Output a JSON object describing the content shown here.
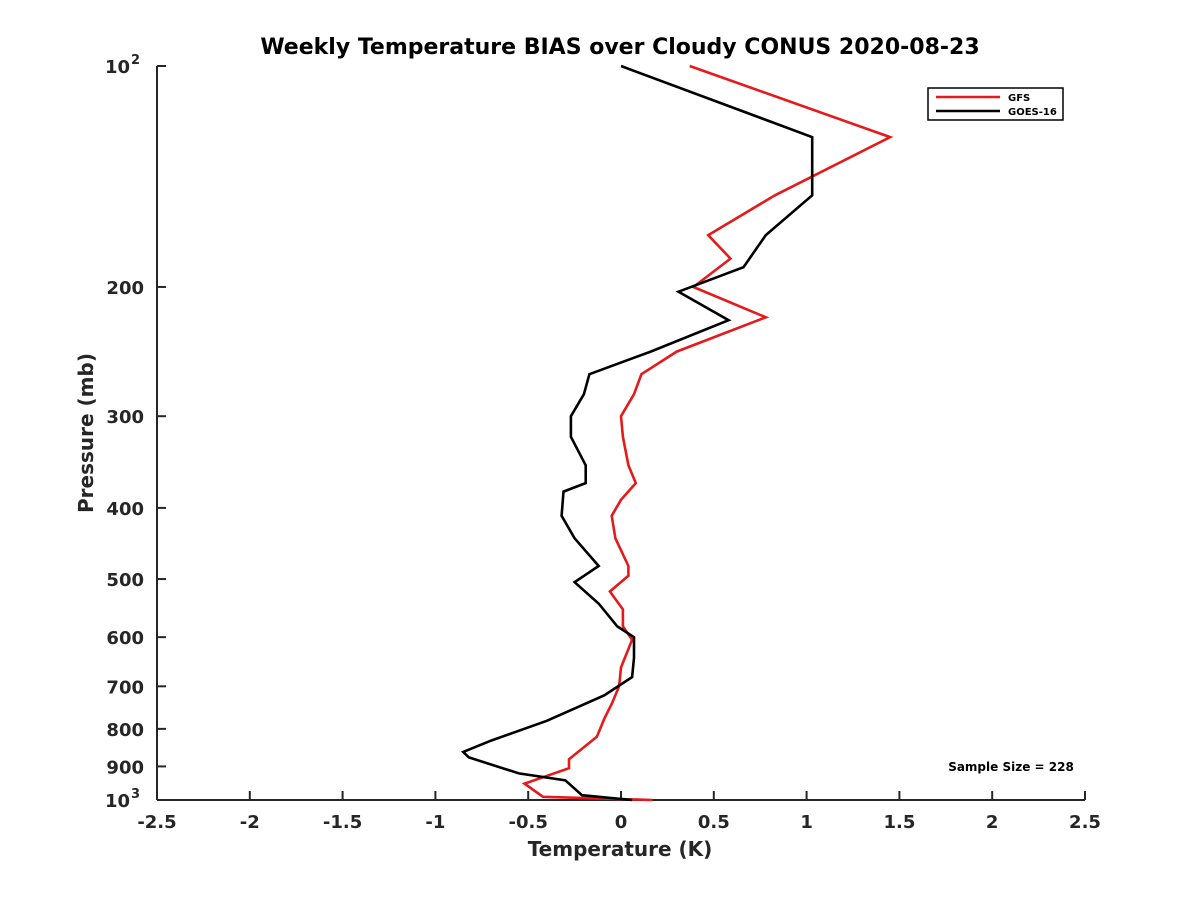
{
  "chart_data": {
    "type": "line",
    "title": "Weekly Temperature BIAS over Cloudy CONUS 2020-08-23",
    "xlabel": "Temperature (K)",
    "ylabel": "Pressure (mb)",
    "xlim": [
      -2.5,
      2.5
    ],
    "ylim": [
      1000,
      100
    ],
    "yscale": "log",
    "y_reversed": true,
    "x_ticks": [
      -2.5,
      -2,
      -1.5,
      -1,
      -0.5,
      0,
      0.5,
      1,
      1.5,
      2,
      2.5
    ],
    "x_tick_labels": [
      "-2.5",
      "-2",
      "-1.5",
      "-1",
      "-0.5",
      "0",
      "0.5",
      "1",
      "1.5",
      "2",
      "2.5"
    ],
    "y_ticks": [
      {
        "value": 100,
        "base": "10",
        "exp": "2"
      },
      {
        "value": 200,
        "label": "200"
      },
      {
        "value": 300,
        "label": "300"
      },
      {
        "value": 400,
        "label": "400"
      },
      {
        "value": 500,
        "label": "500"
      },
      {
        "value": 600,
        "label": "600"
      },
      {
        "value": 700,
        "label": "700"
      },
      {
        "value": 800,
        "label": "800"
      },
      {
        "value": 900,
        "label": "900"
      },
      {
        "value": 1000,
        "base": "10",
        "exp": "3"
      }
    ],
    "grid": false,
    "legend": "top-right",
    "annotation": "Sample Size = 228",
    "series": [
      {
        "name": "GFS",
        "color": "#e41a1c",
        "points": [
          [
            0.37,
            100
          ],
          [
            1.45,
            125
          ],
          [
            0.83,
            150
          ],
          [
            0.47,
            170
          ],
          [
            0.59,
            183
          ],
          [
            0.39,
            200
          ],
          [
            0.78,
            220
          ],
          [
            0.3,
            245
          ],
          [
            0.11,
            263
          ],
          [
            0.07,
            280
          ],
          [
            0.0,
            300
          ],
          [
            0.01,
            320
          ],
          [
            0.04,
            350
          ],
          [
            0.08,
            370
          ],
          [
            0.0,
            390
          ],
          [
            -0.05,
            410
          ],
          [
            -0.03,
            440
          ],
          [
            0.04,
            480
          ],
          [
            0.04,
            495
          ],
          [
            -0.06,
            520
          ],
          [
            0.01,
            550
          ],
          [
            0.01,
            580
          ],
          [
            0.06,
            605
          ],
          [
            0.0,
            660
          ],
          [
            -0.01,
            700
          ],
          [
            -0.05,
            740
          ],
          [
            -0.09,
            775
          ],
          [
            -0.13,
            820
          ],
          [
            -0.28,
            880
          ],
          [
            -0.28,
            905
          ],
          [
            -0.52,
            950
          ],
          [
            -0.42,
            990
          ],
          [
            0.17,
            1000
          ]
        ]
      },
      {
        "name": "GOES-16",
        "color": "#000000",
        "points": [
          [
            0.0,
            100
          ],
          [
            1.03,
            125
          ],
          [
            1.03,
            150
          ],
          [
            0.78,
            170
          ],
          [
            0.66,
            188
          ],
          [
            0.31,
            203
          ],
          [
            0.58,
            222
          ],
          [
            0.16,
            245
          ],
          [
            -0.17,
            263
          ],
          [
            -0.2,
            280
          ],
          [
            -0.27,
            300
          ],
          [
            -0.27,
            320
          ],
          [
            -0.19,
            350
          ],
          [
            -0.19,
            370
          ],
          [
            -0.31,
            380
          ],
          [
            -0.32,
            410
          ],
          [
            -0.25,
            440
          ],
          [
            -0.12,
            480
          ],
          [
            -0.25,
            505
          ],
          [
            -0.12,
            540
          ],
          [
            -0.02,
            580
          ],
          [
            0.07,
            600
          ],
          [
            0.07,
            640
          ],
          [
            0.06,
            680
          ],
          [
            -0.09,
            720
          ],
          [
            -0.4,
            780
          ],
          [
            -0.7,
            830
          ],
          [
            -0.85,
            860
          ],
          [
            -0.82,
            875
          ],
          [
            -0.55,
            920
          ],
          [
            -0.3,
            940
          ],
          [
            -0.21,
            985
          ],
          [
            0.06,
            1000
          ]
        ]
      }
    ]
  }
}
